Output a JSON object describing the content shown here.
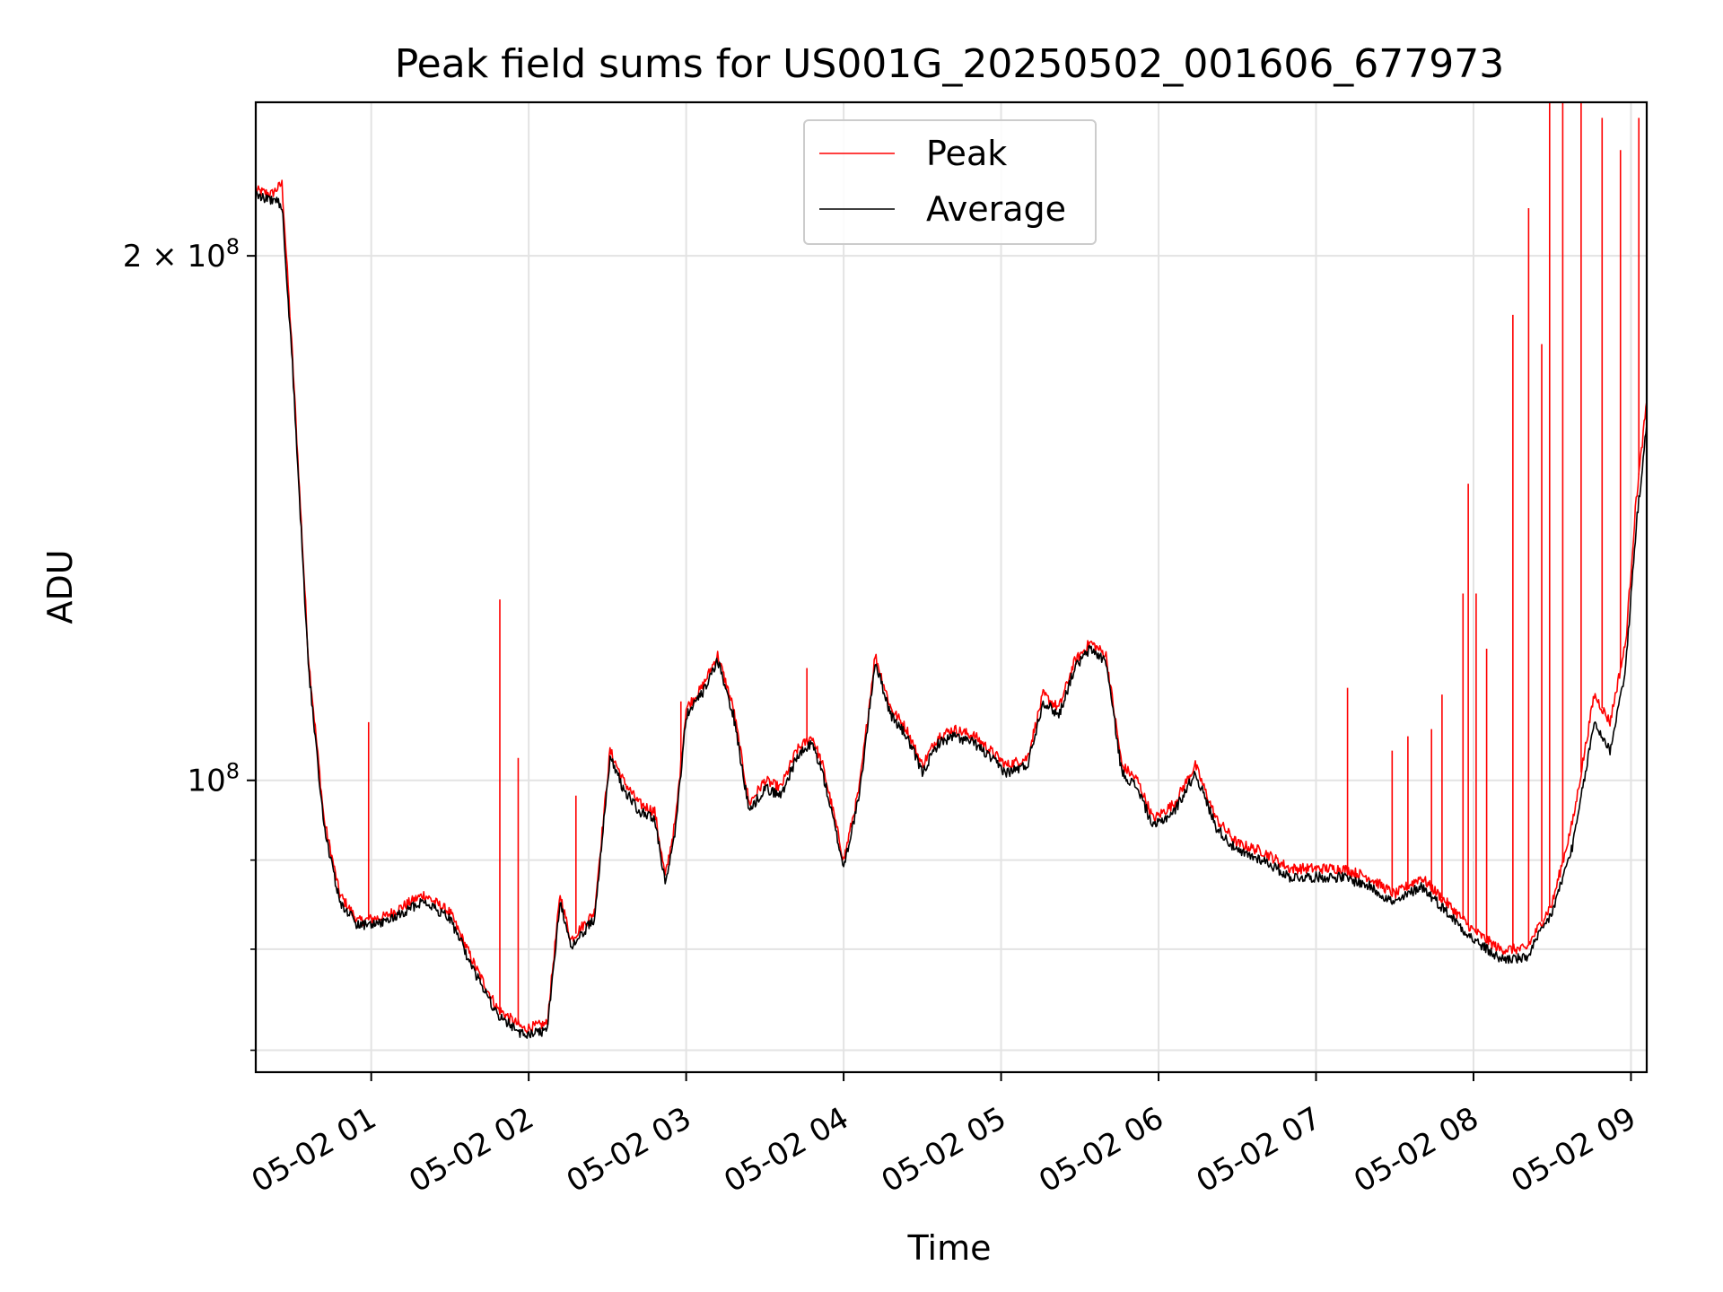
{
  "chart_data": {
    "type": "line",
    "title": "Peak field sums for US001G_20250502_001606_677973",
    "xlabel": "Time",
    "ylabel": "ADU",
    "yscale": "log",
    "xlim": [
      "2025-05-02 00:16",
      "2025-05-02 09:06"
    ],
    "ylim": [
      68000000,
      245000000
    ],
    "grid": true,
    "legend_position": "top-center",
    "x_ticks": [
      "05-02 01",
      "05-02 02",
      "05-02 03",
      "05-02 04",
      "05-02 05",
      "05-02 06",
      "05-02 07",
      "05-02 08",
      "05-02 09"
    ],
    "y_ticks": [
      {
        "value": 100000000,
        "label": "10^8"
      },
      {
        "value": 200000000,
        "label": "2 × 10^8"
      }
    ],
    "series": [
      {
        "name": "Peak",
        "color": "#ff0000",
        "points": [
          [
            "2025-05-02 00:16",
            218000000
          ],
          [
            "2025-05-02 00:22",
            217000000
          ],
          [
            "2025-05-02 00:26",
            220000000
          ],
          [
            "2025-05-02 00:30",
            175000000
          ],
          [
            "2025-05-02 00:36",
            118000000
          ],
          [
            "2025-05-02 00:42",
            95000000
          ],
          [
            "2025-05-02 00:48",
            86000000
          ],
          [
            "2025-05-02 00:55",
            83000000
          ],
          [
            "2025-05-02 01:05",
            83500000
          ],
          [
            "2025-05-02 01:20",
            86000000
          ],
          [
            "2025-05-02 01:30",
            84000000
          ],
          [
            "2025-05-02 01:40",
            78000000
          ],
          [
            "2025-05-02 01:48",
            74000000
          ],
          [
            "2025-05-02 01:58",
            72000000
          ],
          [
            "2025-05-02 02:07",
            72500000
          ],
          [
            "2025-05-02 02:12",
            86000000
          ],
          [
            "2025-05-02 02:16",
            81000000
          ],
          [
            "2025-05-02 02:25",
            84000000
          ],
          [
            "2025-05-02 02:31",
            104000000
          ],
          [
            "2025-05-02 02:36",
            100000000
          ],
          [
            "2025-05-02 02:42",
            97000000
          ],
          [
            "2025-05-02 02:48",
            96000000
          ],
          [
            "2025-05-02 02:52",
            88000000
          ],
          [
            "2025-05-02 02:56",
            95000000
          ],
          [
            "2025-05-02 03:00",
            110000000
          ],
          [
            "2025-05-02 03:06",
            113000000
          ],
          [
            "2025-05-02 03:12",
            118000000
          ],
          [
            "2025-05-02 03:18",
            110000000
          ],
          [
            "2025-05-02 03:24",
            97000000
          ],
          [
            "2025-05-02 03:30",
            100000000
          ],
          [
            "2025-05-02 03:36",
            99000000
          ],
          [
            "2025-05-02 03:42",
            104000000
          ],
          [
            "2025-05-02 03:48",
            106000000
          ],
          [
            "2025-05-02 03:52",
            102000000
          ],
          [
            "2025-05-02 03:56",
            96000000
          ],
          [
            "2025-05-02 04:00",
            90000000
          ],
          [
            "2025-05-02 04:06",
            99000000
          ],
          [
            "2025-05-02 04:12",
            118000000
          ],
          [
            "2025-05-02 04:18",
            110000000
          ],
          [
            "2025-05-02 04:24",
            107000000
          ],
          [
            "2025-05-02 04:30",
            102000000
          ],
          [
            "2025-05-02 04:36",
            106000000
          ],
          [
            "2025-05-02 04:42",
            107000000
          ],
          [
            "2025-05-02 04:50",
            106000000
          ],
          [
            "2025-05-02 04:56",
            104000000
          ],
          [
            "2025-05-02 05:02",
            102000000
          ],
          [
            "2025-05-02 05:10",
            103000000
          ],
          [
            "2025-05-02 05:16",
            112000000
          ],
          [
            "2025-05-02 05:22",
            110000000
          ],
          [
            "2025-05-02 05:28",
            117000000
          ],
          [
            "2025-05-02 05:34",
            120000000
          ],
          [
            "2025-05-02 05:40",
            118000000
          ],
          [
            "2025-05-02 05:46",
            102000000
          ],
          [
            "2025-05-02 05:52",
            100000000
          ],
          [
            "2025-05-02 05:58",
            95000000
          ],
          [
            "2025-05-02 06:06",
            97000000
          ],
          [
            "2025-05-02 06:14",
            102000000
          ],
          [
            "2025-05-02 06:22",
            95000000
          ],
          [
            "2025-05-02 06:30",
            92000000
          ],
          [
            "2025-05-02 06:40",
            91000000
          ],
          [
            "2025-05-02 06:50",
            89000000
          ],
          [
            "2025-05-02 07:00",
            89000000
          ],
          [
            "2025-05-02 07:10",
            89000000
          ],
          [
            "2025-05-02 07:20",
            88000000
          ],
          [
            "2025-05-02 07:30",
            86000000
          ],
          [
            "2025-05-02 07:40",
            88000000
          ],
          [
            "2025-05-02 07:50",
            85000000
          ],
          [
            "2025-05-02 08:00",
            82000000
          ],
          [
            "2025-05-02 08:10",
            80000000
          ],
          [
            "2025-05-02 08:20",
            80000000
          ],
          [
            "2025-05-02 08:30",
            85000000
          ],
          [
            "2025-05-02 08:38",
            95000000
          ],
          [
            "2025-05-02 08:46",
            112000000
          ],
          [
            "2025-05-02 08:52",
            108000000
          ],
          [
            "2025-05-02 08:58",
            120000000
          ],
          [
            "2025-05-02 09:02",
            145000000
          ],
          [
            "2025-05-02 09:06",
            165000000
          ]
        ],
        "spikes": [
          [
            "2025-05-02 00:59",
            108000000
          ],
          [
            "2025-05-02 01:49",
            127000000
          ],
          [
            "2025-05-02 01:56",
            103000000
          ],
          [
            "2025-05-02 02:18",
            98000000
          ],
          [
            "2025-05-02 02:58",
            111000000
          ],
          [
            "2025-05-02 03:46",
            116000000
          ],
          [
            "2025-05-02 07:12",
            113000000
          ],
          [
            "2025-05-02 07:29",
            104000000
          ],
          [
            "2025-05-02 07:35",
            106000000
          ],
          [
            "2025-05-02 07:44",
            107000000
          ],
          [
            "2025-05-02 07:48",
            112000000
          ],
          [
            "2025-05-02 07:56",
            128000000
          ],
          [
            "2025-05-02 07:58",
            148000000
          ],
          [
            "2025-05-02 08:01",
            128000000
          ],
          [
            "2025-05-02 08:05",
            119000000
          ],
          [
            "2025-05-02 08:15",
            185000000
          ],
          [
            "2025-05-02 08:21",
            213000000
          ],
          [
            "2025-05-02 08:26",
            178000000
          ],
          [
            "2025-05-02 08:29",
            245000000
          ],
          [
            "2025-05-02 08:34",
            245000000
          ],
          [
            "2025-05-02 08:41",
            245000000
          ],
          [
            "2025-05-02 08:49",
            240000000
          ],
          [
            "2025-05-02 08:56",
            230000000
          ],
          [
            "2025-05-02 09:03",
            240000000
          ]
        ]
      },
      {
        "name": "Average",
        "color": "#000000",
        "points": [
          [
            "2025-05-02 00:16",
            216500000
          ],
          [
            "2025-05-02 00:22",
            215500000
          ],
          [
            "2025-05-02 00:26",
            214000000
          ],
          [
            "2025-05-02 00:30",
            173000000
          ],
          [
            "2025-05-02 00:36",
            116500000
          ],
          [
            "2025-05-02 00:42",
            94000000
          ],
          [
            "2025-05-02 00:48",
            85200000
          ],
          [
            "2025-05-02 00:55",
            82500000
          ],
          [
            "2025-05-02 01:05",
            82800000
          ],
          [
            "2025-05-02 01:20",
            85300000
          ],
          [
            "2025-05-02 01:30",
            83300000
          ],
          [
            "2025-05-02 01:40",
            77300000
          ],
          [
            "2025-05-02 01:48",
            73300000
          ],
          [
            "2025-05-02 01:58",
            71400000
          ],
          [
            "2025-05-02 02:07",
            71900000
          ],
          [
            "2025-05-02 02:12",
            85100000
          ],
          [
            "2025-05-02 02:16",
            80300000
          ],
          [
            "2025-05-02 02:25",
            83200000
          ],
          [
            "2025-05-02 02:31",
            103000000
          ],
          [
            "2025-05-02 02:36",
            99000000
          ],
          [
            "2025-05-02 02:42",
            96000000
          ],
          [
            "2025-05-02 02:48",
            95000000
          ],
          [
            "2025-05-02 02:52",
            87200000
          ],
          [
            "2025-05-02 02:56",
            94000000
          ],
          [
            "2025-05-02 03:00",
            109000000
          ],
          [
            "2025-05-02 03:06",
            112000000
          ],
          [
            "2025-05-02 03:12",
            117000000
          ],
          [
            "2025-05-02 03:18",
            109000000
          ],
          [
            "2025-05-02 03:24",
            96000000
          ],
          [
            "2025-05-02 03:30",
            99000000
          ],
          [
            "2025-05-02 03:36",
            98000000
          ],
          [
            "2025-05-02 03:42",
            103000000
          ],
          [
            "2025-05-02 03:48",
            105000000
          ],
          [
            "2025-05-02 03:52",
            101000000
          ],
          [
            "2025-05-02 03:56",
            95000000
          ],
          [
            "2025-05-02 04:00",
            89200000
          ],
          [
            "2025-05-02 04:06",
            98000000
          ],
          [
            "2025-05-02 04:12",
            117000000
          ],
          [
            "2025-05-02 04:18",
            109000000
          ],
          [
            "2025-05-02 04:24",
            106000000
          ],
          [
            "2025-05-02 04:30",
            101000000
          ],
          [
            "2025-05-02 04:36",
            105000000
          ],
          [
            "2025-05-02 04:42",
            106000000
          ],
          [
            "2025-05-02 04:50",
            105000000
          ],
          [
            "2025-05-02 04:56",
            103000000
          ],
          [
            "2025-05-02 05:02",
            101000000
          ],
          [
            "2025-05-02 05:10",
            102000000
          ],
          [
            "2025-05-02 05:16",
            111000000
          ],
          [
            "2025-05-02 05:22",
            109000000
          ],
          [
            "2025-05-02 05:28",
            116000000
          ],
          [
            "2025-05-02 05:34",
            119000000
          ],
          [
            "2025-05-02 05:40",
            117000000
          ],
          [
            "2025-05-02 05:46",
            101000000
          ],
          [
            "2025-05-02 05:52",
            99000000
          ],
          [
            "2025-05-02 05:58",
            94000000
          ],
          [
            "2025-05-02 06:06",
            96000000
          ],
          [
            "2025-05-02 06:14",
            101000000
          ],
          [
            "2025-05-02 06:22",
            94000000
          ],
          [
            "2025-05-02 06:30",
            91000000
          ],
          [
            "2025-05-02 06:40",
            90000000
          ],
          [
            "2025-05-02 06:50",
            88000000
          ],
          [
            "2025-05-02 07:00",
            88000000
          ],
          [
            "2025-05-02 07:10",
            88000000
          ],
          [
            "2025-05-02 07:20",
            87000000
          ],
          [
            "2025-05-02 07:30",
            85000000
          ],
          [
            "2025-05-02 07:40",
            87000000
          ],
          [
            "2025-05-02 07:50",
            84000000
          ],
          [
            "2025-05-02 08:00",
            81000000
          ],
          [
            "2025-05-02 08:10",
            79000000
          ],
          [
            "2025-05-02 08:20",
            79000000
          ],
          [
            "2025-05-02 08:30",
            84000000
          ],
          [
            "2025-05-02 08:38",
            92000000
          ],
          [
            "2025-05-02 08:46",
            108000000
          ],
          [
            "2025-05-02 08:52",
            104000000
          ],
          [
            "2025-05-02 08:58",
            116000000
          ],
          [
            "2025-05-02 09:02",
            140000000
          ],
          [
            "2025-05-02 09:06",
            160000000
          ]
        ]
      }
    ]
  }
}
